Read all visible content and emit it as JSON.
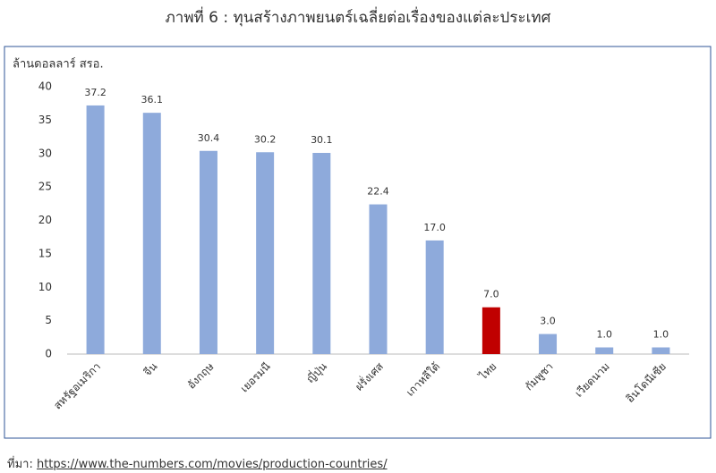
{
  "chart_data": {
    "type": "bar",
    "title": "ภาพที่ 6 : ทุนสร้างภาพยนตร์เฉลี่ยต่อเรื่องของแต่ละประเทศ",
    "y_label": "ล้านดอลลาร์ สรอ.",
    "categories": [
      "สหรัฐอเมริกา",
      "จีน",
      "อังกฤษ",
      "เยอรมนี",
      "ญี่ปุ่น",
      "ฝรั่งเศส",
      "เกาหลีใต้",
      "ไทย",
      "กัมพูชา",
      "เวียดนาม",
      "อินโดนีเซีย"
    ],
    "values": [
      37.2,
      36.1,
      30.4,
      30.2,
      30.1,
      22.4,
      17.0,
      7.0,
      3.0,
      1.0,
      1.0
    ],
    "value_labels": [
      "37.2",
      "36.1",
      "30.4",
      "30.2",
      "30.1",
      "22.4",
      "17.0",
      "7.0",
      "3.0",
      "1.0",
      "1.0"
    ],
    "colors": [
      "#8eaadb",
      "#8eaadb",
      "#8eaadb",
      "#8eaadb",
      "#8eaadb",
      "#8eaadb",
      "#8eaadb",
      "#c00000",
      "#8eaadb",
      "#8eaadb",
      "#8eaadb"
    ],
    "ylim": [
      0,
      40
    ],
    "yticks": [
      0,
      5,
      10,
      15,
      20,
      25,
      30,
      35,
      40
    ],
    "grid": false
  },
  "source": {
    "prefix": "ที่มา:",
    "url": "https://www.the-numbers.com/movies/production-countries/"
  }
}
